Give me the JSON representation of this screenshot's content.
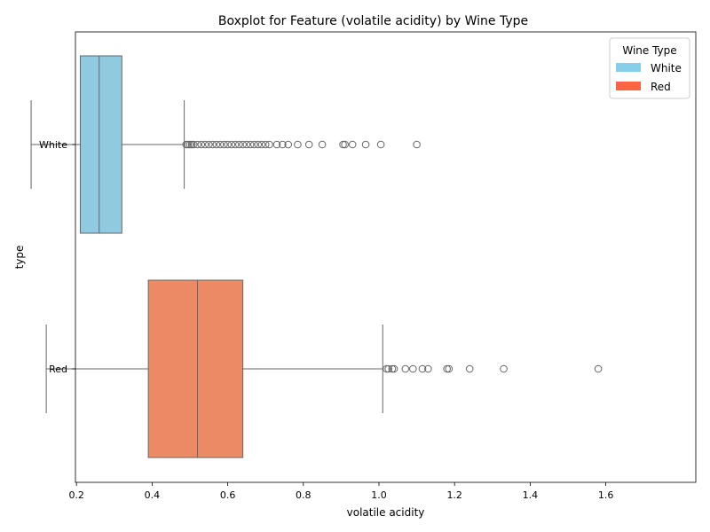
{
  "chart_data": {
    "type": "boxplot",
    "title": "Boxplot for Feature (volatile acidity) by Wine Type",
    "xlabel": "volatile acidity",
    "ylabel": "type",
    "xlim": [
      0.0,
      1.65
    ],
    "xticks": [
      0.2,
      0.4,
      0.6,
      0.8,
      1.0,
      1.2,
      1.4,
      1.6
    ],
    "xtick_labels": [
      "0.2",
      "0.4",
      "0.6",
      "0.8",
      "1.0",
      "1.2",
      "1.4",
      "1.6"
    ],
    "grid": false,
    "legend": {
      "title": "Wine Type",
      "position": "top-right",
      "entries": [
        {
          "label": "White",
          "color": "#87CEEB"
        },
        {
          "label": "Red",
          "color": "#FF6347"
        }
      ]
    },
    "categories": [
      "White",
      "Red"
    ],
    "series": [
      {
        "name": "White",
        "box_color": "#8FCAE0",
        "whisker_low": 0.08,
        "q1": 0.21,
        "median": 0.26,
        "q3": 0.32,
        "whisker_high": 0.485,
        "outliers": [
          0.49,
          0.495,
          0.5,
          0.505,
          0.51,
          0.52,
          0.53,
          0.54,
          0.55,
          0.56,
          0.57,
          0.58,
          0.59,
          0.6,
          0.61,
          0.62,
          0.63,
          0.64,
          0.65,
          0.66,
          0.67,
          0.68,
          0.69,
          0.7,
          0.71,
          0.73,
          0.745,
          0.76,
          0.785,
          0.815,
          0.85,
          0.905,
          0.91,
          0.93,
          0.965,
          1.005,
          1.1
        ]
      },
      {
        "name": "Red",
        "box_color": "#EC8A66",
        "whisker_low": 0.12,
        "q1": 0.39,
        "median": 0.52,
        "q3": 0.64,
        "whisker_high": 1.01,
        "outliers": [
          1.02,
          1.025,
          1.035,
          1.04,
          1.07,
          1.09,
          1.115,
          1.13,
          1.18,
          1.185,
          1.24,
          1.33,
          1.58
        ]
      }
    ]
  }
}
